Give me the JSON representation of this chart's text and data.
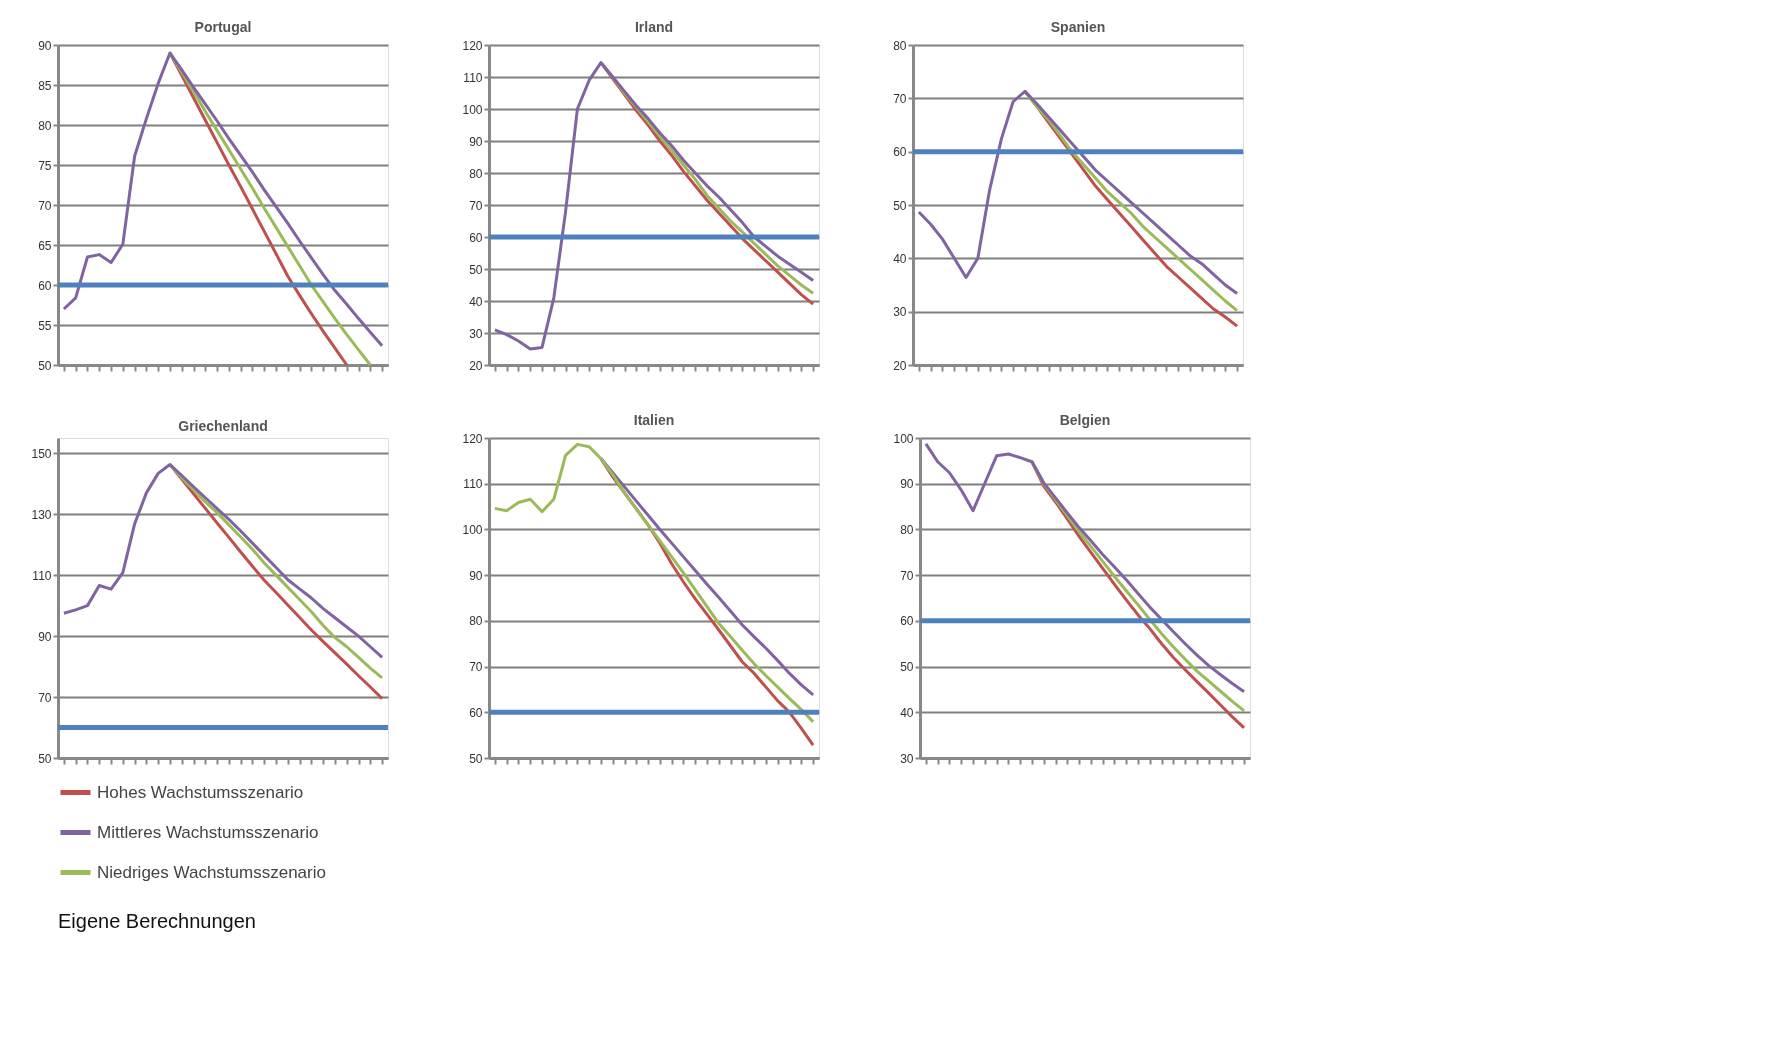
{
  "chart_data": [
    {
      "type": "line",
      "title": "Portugal",
      "categories": [
        null,
        null,
        null,
        null,
        null,
        null,
        null,
        null,
        null,
        null,
        null,
        null,
        null,
        null,
        null,
        null,
        null,
        null,
        null,
        null,
        null,
        null,
        null,
        null,
        null,
        null,
        null,
        null
      ],
      "ylim": [
        50,
        90
      ],
      "yticks": [
        50,
        55,
        60,
        65,
        70,
        75,
        80,
        85,
        90
      ],
      "grid": "y",
      "tick_labels": "y",
      "legend": "bottom",
      "ref_lines": [
        {
          "axis": "y",
          "value": 60,
          "color": "#4f81bd"
        }
      ],
      "series": [
        {
          "name": "Hohes Wachstumsszenario",
          "color": "#c0504d",
          "values": [
            null,
            null,
            null,
            null,
            null,
            null,
            null,
            null,
            null,
            89,
            86.2,
            83.4,
            80.6,
            77.8,
            75,
            72.3,
            69.5,
            66.7,
            63.9,
            61.1,
            58.7,
            56.4,
            54.2,
            52.1,
            50,
            null,
            null,
            null
          ]
        },
        {
          "name": "Mittleres Wachstumsszenario",
          "color": "#8064a2",
          "values": [
            57,
            58.4,
            63.5,
            63.8,
            62.8,
            65.1,
            76.1,
            80.8,
            85.2,
            89,
            86.9,
            84.7,
            82.6,
            80.5,
            78.3,
            76.2,
            74.1,
            71.9,
            69.8,
            67.7,
            65.5,
            63.4,
            61.3,
            59.3,
            57.6,
            55.8,
            54.1,
            52.4
          ]
        },
        {
          "name": "Niedriges Wachstumsszenario",
          "color": "#9bbb59",
          "values": [
            null,
            null,
            null,
            null,
            null,
            null,
            null,
            null,
            null,
            89,
            86.6,
            84.2,
            81.7,
            79.3,
            76.9,
            74.5,
            72.1,
            69.6,
            67.2,
            64.8,
            62.4,
            60,
            57.9,
            55.8,
            53.8,
            51.9,
            50,
            null
          ]
        }
      ]
    },
    {
      "type": "line",
      "title": "Irland",
      "categories": [
        null,
        null,
        null,
        null,
        null,
        null,
        null,
        null,
        null,
        null,
        null,
        null,
        null,
        null,
        null,
        null,
        null,
        null,
        null,
        null,
        null,
        null,
        null,
        null,
        null,
        null,
        null,
        null
      ],
      "ylim": [
        20,
        120
      ],
      "yticks": [
        20,
        30,
        40,
        50,
        60,
        70,
        80,
        90,
        100,
        110,
        120
      ],
      "grid": "y",
      "tick_labels": "y",
      "ref_lines": [
        {
          "axis": "y",
          "value": 60,
          "color": "#4f81bd"
        }
      ],
      "series": [
        {
          "color": "#c0504d",
          "values": [
            null,
            null,
            null,
            null,
            null,
            null,
            null,
            null,
            null,
            114.5,
            109.5,
            104.5,
            99.5,
            95,
            90,
            85.5,
            80.5,
            76,
            71.5,
            67.5,
            63.5,
            59.5,
            56,
            52.5,
            49,
            45.5,
            42,
            39
          ]
        },
        {
          "color": "#8064a2",
          "values": [
            31,
            29.5,
            27.5,
            25,
            25.5,
            41,
            68,
            100,
            109,
            114.5,
            110,
            105.5,
            101,
            97,
            92.5,
            88.5,
            84,
            80,
            76,
            72.5,
            68.5,
            64.5,
            60,
            57,
            54,
            51.5,
            49,
            46.4
          ]
        },
        {
          "color": "#9bbb59",
          "values": [
            null,
            null,
            null,
            null,
            null,
            null,
            null,
            null,
            null,
            114.5,
            110,
            105,
            100.5,
            96,
            91.5,
            87,
            82.5,
            78,
            73,
            69,
            65,
            61.5,
            58,
            54.5,
            51,
            48,
            45,
            42.4
          ]
        }
      ]
    },
    {
      "type": "line",
      "title": "Spanien",
      "categories": [
        null,
        null,
        null,
        null,
        null,
        null,
        null,
        null,
        null,
        null,
        null,
        null,
        null,
        null,
        null,
        null,
        null,
        null,
        null,
        null,
        null,
        null,
        null,
        null,
        null,
        null,
        null,
        null
      ],
      "ylim": [
        20,
        80
      ],
      "yticks": [
        20,
        30,
        40,
        50,
        60,
        70,
        80
      ],
      "grid": "y",
      "tick_labels": "y",
      "ref_lines": [
        {
          "axis": "y",
          "value": 60,
          "color": "#4f81bd"
        }
      ],
      "series": [
        {
          "color": "#c0504d",
          "values": [
            null,
            null,
            null,
            null,
            null,
            null,
            null,
            null,
            null,
            71.3,
            68.5,
            65.5,
            62.5,
            59.5,
            56.5,
            53.5,
            51,
            48.5,
            46,
            43.5,
            41,
            38.5,
            36.5,
            34.5,
            32.5,
            30.5,
            29,
            27.3
          ]
        },
        {
          "color": "#8064a2",
          "values": [
            48.7,
            46.4,
            43.6,
            40,
            36.4,
            40,
            52.8,
            62.4,
            69.4,
            71.3,
            69,
            66.5,
            64,
            61.5,
            59,
            56.5,
            54.5,
            52.5,
            50.5,
            48.5,
            46.5,
            44.5,
            42.5,
            40.5,
            39,
            37,
            35,
            33.4
          ]
        },
        {
          "color": "#9bbb59",
          "values": [
            null,
            null,
            null,
            null,
            null,
            null,
            null,
            null,
            null,
            71.3,
            68.5,
            66,
            63,
            60,
            57.5,
            55,
            52.5,
            50.5,
            48.5,
            46,
            44,
            42,
            40,
            38,
            36,
            34,
            32,
            30.2
          ]
        }
      ]
    },
    {
      "type": "line",
      "title": "Griechenland",
      "categories": [
        null,
        null,
        null,
        null,
        null,
        null,
        null,
        null,
        null,
        null,
        null,
        null,
        null,
        null,
        null,
        null,
        null,
        null,
        null,
        null,
        null,
        null,
        null,
        null,
        null,
        null,
        null,
        null
      ],
      "ylim": [
        50,
        155
      ],
      "yticks": [
        50,
        70,
        90,
        110,
        130,
        150
      ],
      "grid": "y",
      "tick_labels": "y",
      "ref_lines": [
        {
          "axis": "y",
          "value": 60,
          "color": "#4f81bd"
        }
      ],
      "series": [
        {
          "color": "#c0504d",
          "values": [
            null,
            null,
            null,
            null,
            null,
            null,
            null,
            null,
            null,
            146.3,
            141.5,
            136.7,
            131.9,
            127.1,
            122.4,
            117.6,
            112.9,
            108.3,
            104.3,
            100.2,
            96.1,
            92,
            88.2,
            84.5,
            80.8,
            77,
            73.3,
            69.5
          ]
        },
        {
          "color": "#8064a2",
          "values": [
            97.5,
            98.6,
            100,
            106.6,
            105.4,
            110.8,
            126.8,
            137,
            143.4,
            146.3,
            142.7,
            139,
            135.4,
            131.8,
            128.3,
            124.5,
            120.5,
            116.5,
            112.5,
            108.5,
            105.5,
            102.5,
            99,
            96,
            93,
            90,
            86.5,
            83
          ]
        },
        {
          "color": "#9bbb59",
          "values": [
            null,
            null,
            null,
            null,
            null,
            null,
            null,
            null,
            null,
            146.3,
            142,
            138,
            134,
            130.5,
            126.5,
            122.5,
            118.5,
            114,
            110,
            106,
            102,
            98,
            93.5,
            89.5,
            86.5,
            83,
            79.5,
            76.3
          ]
        }
      ]
    },
    {
      "type": "line",
      "title": "Italien",
      "categories": [
        null,
        null,
        null,
        null,
        null,
        null,
        null,
        null,
        null,
        null,
        null,
        null,
        null,
        null,
        null,
        null,
        null,
        null,
        null,
        null,
        null,
        null,
        null,
        null,
        null,
        null,
        null,
        null
      ],
      "ylim": [
        50,
        120
      ],
      "yticks": [
        50,
        60,
        70,
        80,
        90,
        100,
        110,
        120
      ],
      "grid": "y",
      "tick_labels": "y",
      "ref_lines": [
        {
          "axis": "y",
          "value": 60,
          "color": "#4f81bd"
        }
      ],
      "series": [
        {
          "color": "#c0504d",
          "values": [
            null,
            null,
            null,
            null,
            null,
            null,
            null,
            null,
            null,
            115.5,
            111.5,
            108,
            104.5,
            101,
            97,
            92.5,
            88.5,
            84.8,
            81.4,
            78,
            74.5,
            71,
            68.5,
            65.5,
            62.5,
            60,
            56.5,
            52.8
          ]
        },
        {
          "color": "#8064a2",
          "values": [
            null,
            null,
            null,
            null,
            null,
            null,
            null,
            null,
            null,
            115.5,
            112.4,
            109.3,
            106.2,
            103.1,
            100,
            97,
            94,
            91,
            88,
            85.1,
            82.1,
            79.1,
            76.5,
            74,
            71.3,
            68.5,
            66,
            63.8
          ]
        },
        {
          "color": "#9bbb59",
          "values": [
            104.6,
            104.1,
            105.9,
            106.6,
            103.9,
            106.6,
            116.2,
            118.6,
            118.1,
            115.5,
            112,
            108,
            104.5,
            101,
            97.5,
            94,
            90.5,
            86.8,
            83.1,
            79.4,
            76.5,
            73.5,
            70.6,
            68,
            65.5,
            63,
            60.6,
            57.9
          ]
        }
      ]
    },
    {
      "type": "line",
      "title": "Belgien",
      "categories": [
        null,
        null,
        null,
        null,
        null,
        null,
        null,
        null,
        null,
        null,
        null,
        null,
        null,
        null,
        null,
        null,
        null,
        null,
        null,
        null,
        null,
        null,
        null,
        null,
        null,
        null,
        null,
        null
      ],
      "ylim": [
        30,
        100
      ],
      "yticks": [
        30,
        40,
        50,
        60,
        70,
        80,
        90,
        100
      ],
      "grid": "y",
      "tick_labels": "y",
      "ref_lines": [
        {
          "axis": "y",
          "value": 60,
          "color": "#4f81bd"
        }
      ],
      "annotations": [
        "Eigene Berechnungen"
      ],
      "series": [
        {
          "color": "#c0504d",
          "values": [
            null,
            null,
            null,
            null,
            null,
            null,
            null,
            null,
            null,
            94.8,
            89.5,
            86,
            82.3,
            78.5,
            75,
            71.5,
            68,
            64.6,
            61.3,
            58.3,
            55,
            52,
            49.3,
            46.7,
            44.2,
            41.6,
            39,
            36.6
          ]
        },
        {
          "color": "#8064a2",
          "values": [
            98.7,
            94.8,
            92.4,
            88.6,
            84.1,
            90.1,
            96.1,
            96.5,
            95.7,
            94.8,
            90.2,
            86.9,
            83.6,
            80.4,
            77.5,
            74.5,
            71.8,
            69,
            66,
            63,
            60.3,
            57.6,
            55,
            52.5,
            50.2,
            48.2,
            46.3,
            44.5
          ]
        },
        {
          "color": "#9bbb59",
          "values": [
            null,
            null,
            null,
            null,
            null,
            null,
            null,
            null,
            null,
            94.8,
            90,
            86.5,
            83,
            79.5,
            76.3,
            73,
            69.7,
            66.6,
            63.5,
            60.3,
            57.2,
            54.3,
            51.6,
            49,
            46.8,
            44.6,
            42.4,
            40.3
          ]
        }
      ]
    }
  ]
}
